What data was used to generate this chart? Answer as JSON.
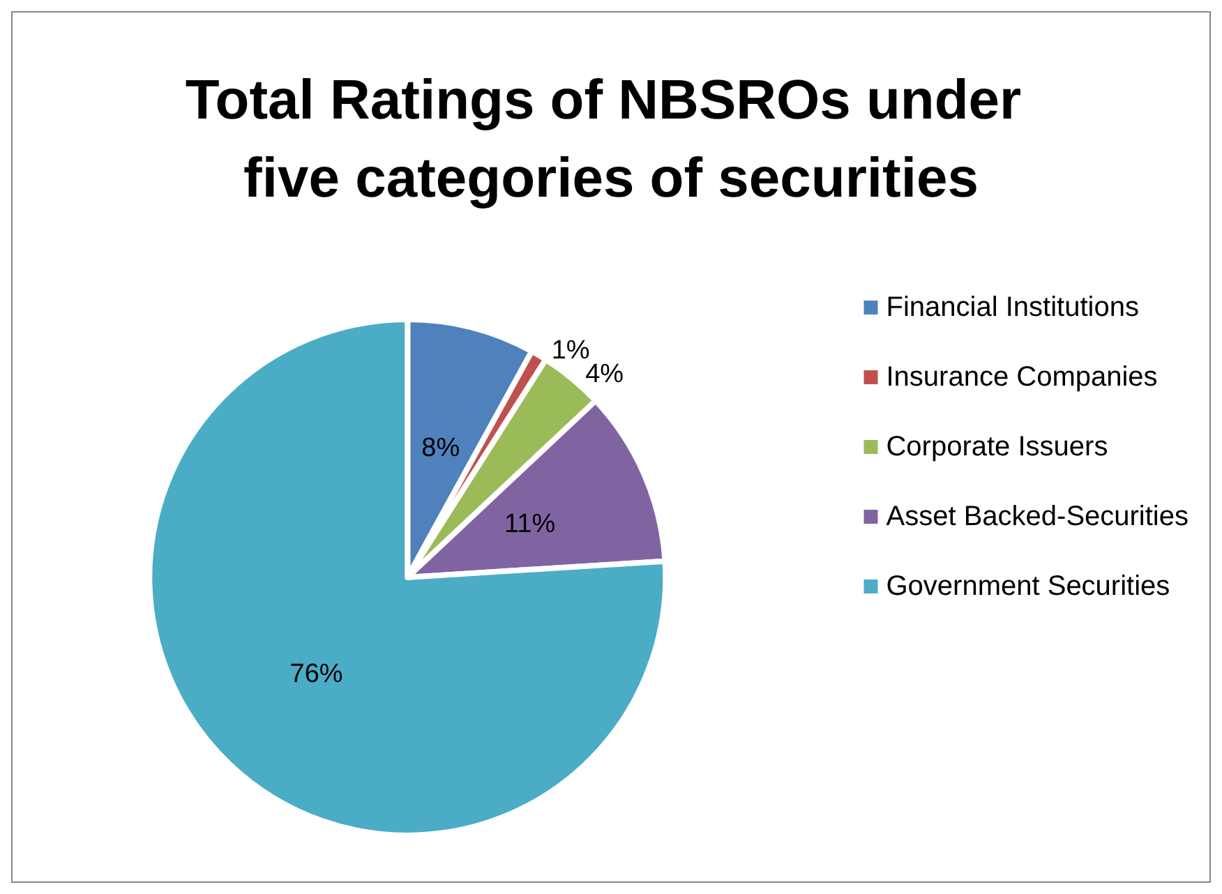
{
  "chart_data": {
    "type": "pie",
    "title": "Total Ratings of NBSROs under five categories of securities",
    "categories": [
      "Financial Institutions",
      "Insurance Companies",
      "Corporate Issuers",
      "Asset Backed-Securities",
      "Government Securities"
    ],
    "values": [
      8,
      1,
      4,
      11,
      76
    ],
    "value_labels": [
      "8%",
      "1%",
      "4%",
      "11%",
      "76%"
    ],
    "colors": [
      "#4f81bd",
      "#c0504d",
      "#9bbb59",
      "#8064a2",
      "#4bacc6"
    ],
    "legend": "right"
  }
}
